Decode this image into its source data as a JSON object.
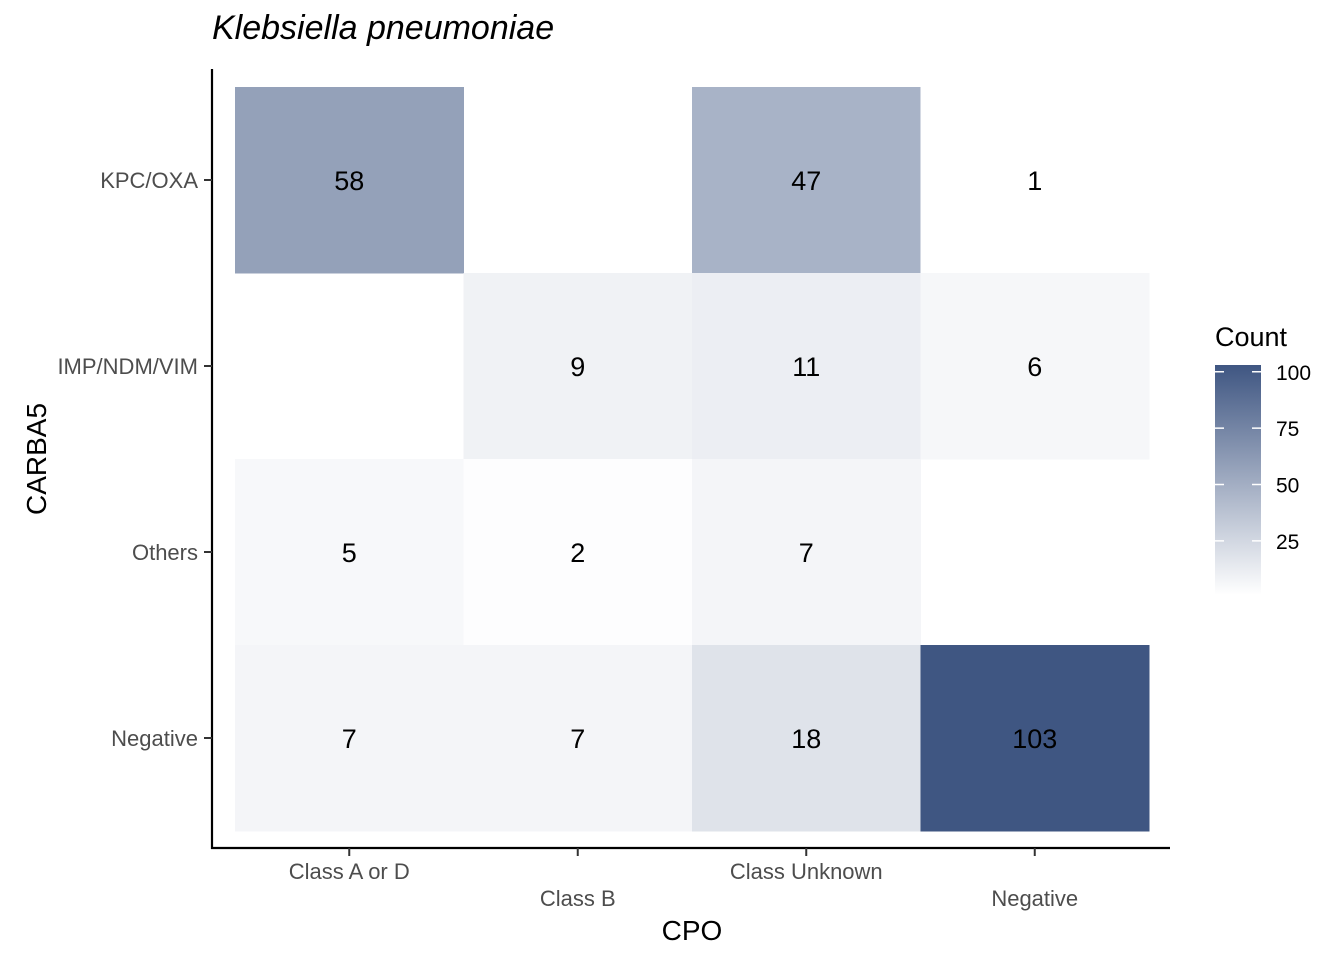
{
  "chart_data": {
    "type": "heatmap",
    "title": "Klebsiella pneumoniae",
    "xlabel": "CPO",
    "ylabel": "CARBA5",
    "x_categories": [
      "Class A or D",
      "Class B",
      "Class Unknown",
      "Negative"
    ],
    "y_categories": [
      "KPC/OXA",
      "IMP/NDM/VIM",
      "Others",
      "Negative"
    ],
    "cells": [
      {
        "x": "Class A or D",
        "y": "KPC/OXA",
        "value": 58
      },
      {
        "x": "Class Unknown",
        "y": "KPC/OXA",
        "value": 47
      },
      {
        "x": "Negative",
        "y": "KPC/OXA",
        "value": 1
      },
      {
        "x": "Class B",
        "y": "IMP/NDM/VIM",
        "value": 9
      },
      {
        "x": "Class Unknown",
        "y": "IMP/NDM/VIM",
        "value": 11
      },
      {
        "x": "Negative",
        "y": "IMP/NDM/VIM",
        "value": 6
      },
      {
        "x": "Class A or D",
        "y": "Others",
        "value": 5
      },
      {
        "x": "Class B",
        "y": "Others",
        "value": 2
      },
      {
        "x": "Class Unknown",
        "y": "Others",
        "value": 7
      },
      {
        "x": "Class A or D",
        "y": "Negative",
        "value": 7
      },
      {
        "x": "Class B",
        "y": "Negative",
        "value": 7
      },
      {
        "x": "Class Unknown",
        "y": "Negative",
        "value": 18
      },
      {
        "x": "Negative",
        "y": "Negative",
        "value": 103
      }
    ],
    "legend": {
      "title": "Count",
      "ticks": [
        25,
        50,
        75,
        100
      ],
      "range": [
        1,
        103
      ],
      "low_color": "#ffffff",
      "high_color": "#3f5682",
      "placement": "right"
    },
    "grid": false
  }
}
